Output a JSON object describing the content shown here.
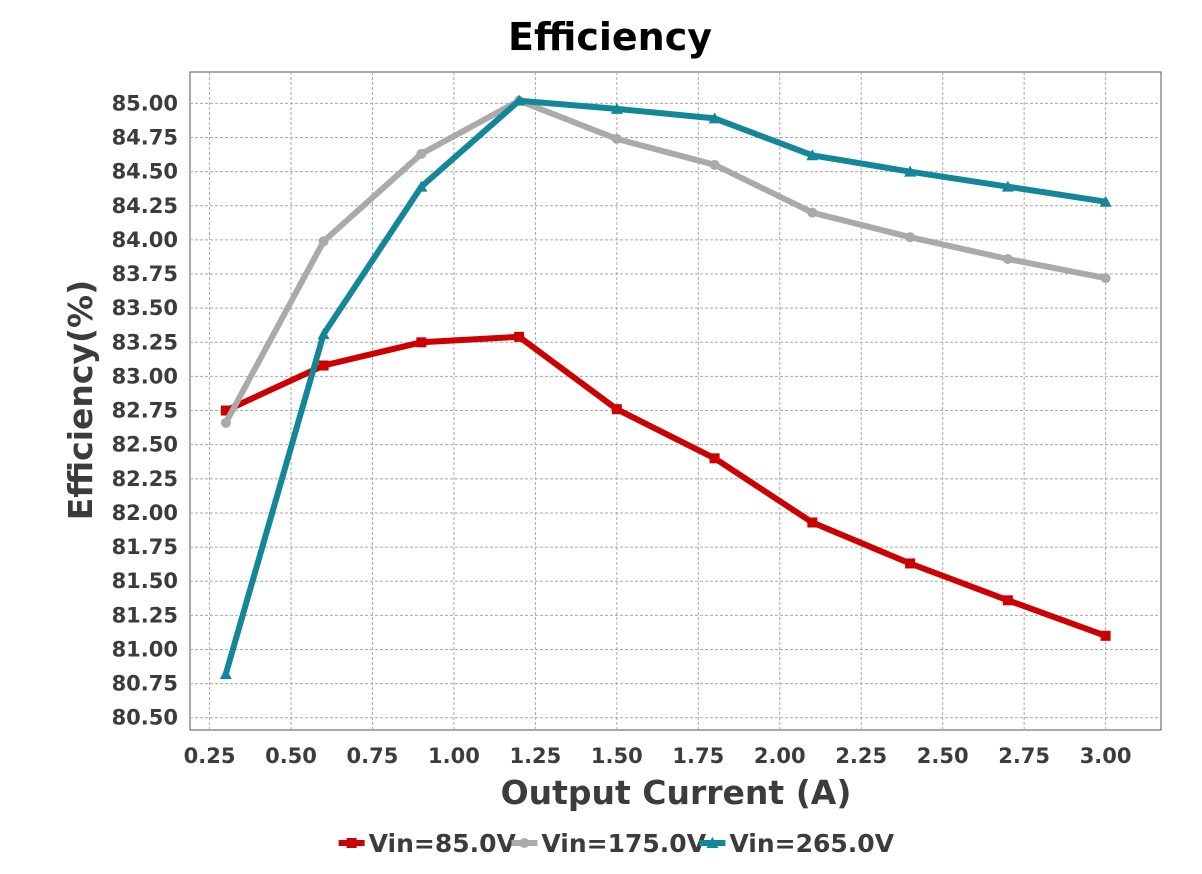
{
  "chart_data": {
    "type": "line",
    "title": "Efficiency",
    "xlabel": "Output Current (A)",
    "ylabel": "Efficiency(%)",
    "xlim": [
      0.19,
      3.17
    ],
    "ylim": [
      80.41,
      85.23
    ],
    "x_ticks": [
      "0.25",
      "0.50",
      "0.75",
      "1.00",
      "1.25",
      "1.50",
      "1.75",
      "2.00",
      "2.25",
      "2.50",
      "2.75",
      "3.00"
    ],
    "y_ticks": [
      "80.50",
      "80.75",
      "81.00",
      "81.25",
      "81.50",
      "81.75",
      "82.00",
      "82.25",
      "82.50",
      "82.75",
      "83.00",
      "83.25",
      "83.50",
      "83.75",
      "84.00",
      "84.25",
      "84.50",
      "84.75",
      "85.00"
    ],
    "grid": true,
    "legend_position": "bottom",
    "x": [
      0.3,
      0.6,
      0.9,
      1.2,
      1.5,
      1.8,
      2.1,
      2.4,
      2.7,
      3.0
    ],
    "series": [
      {
        "name": "Vin=85.0V",
        "color": "#cc0000",
        "marker": "square",
        "values": [
          82.75,
          83.08,
          83.25,
          83.29,
          82.76,
          82.4,
          81.93,
          81.63,
          81.36,
          81.1
        ]
      },
      {
        "name": "Vin=175.0V",
        "color": "#aaaaaa",
        "marker": "circle",
        "values": [
          82.66,
          83.99,
          84.63,
          85.02,
          84.74,
          84.55,
          84.2,
          84.02,
          83.86,
          83.72
        ]
      },
      {
        "name": "Vin=265.0V",
        "color": "#14869a",
        "marker": "triangle",
        "values": [
          80.82,
          83.31,
          84.39,
          85.02,
          84.96,
          84.89,
          84.62,
          84.5,
          84.39,
          84.28
        ]
      }
    ]
  }
}
